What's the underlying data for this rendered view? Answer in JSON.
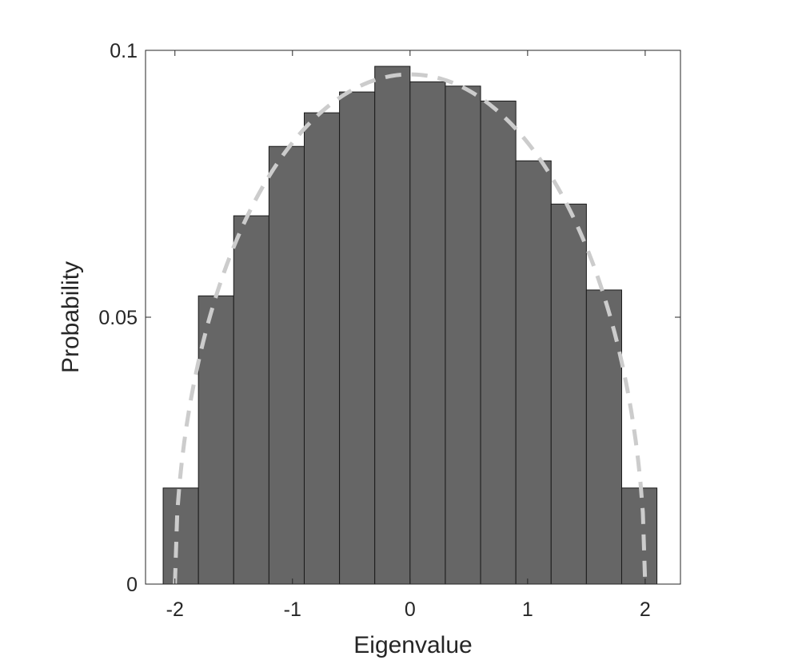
{
  "chart_data": {
    "type": "bar",
    "title": "",
    "xlabel": "Eigenvalue",
    "ylabel": "Probability",
    "xlim": [
      -2.25,
      2.3
    ],
    "ylim": [
      0,
      0.1
    ],
    "xticks": [
      -2,
      -1,
      0,
      1,
      2
    ],
    "xtick_labels": [
      "-2",
      "-1",
      "0",
      "1",
      "2"
    ],
    "yticks": [
      0,
      0.05,
      0.1
    ],
    "ytick_labels": [
      "0",
      "0.05",
      "0.1"
    ],
    "bin_edges": [
      -2.1,
      -1.8,
      -1.5,
      -1.2,
      -0.9,
      -0.6,
      -0.3,
      0.0,
      0.3,
      0.6,
      0.9,
      1.2,
      1.5,
      1.8,
      2.1
    ],
    "values": [
      0.018,
      0.054,
      0.069,
      0.082,
      0.0883,
      0.0922,
      0.097,
      0.0941,
      0.0933,
      0.0905,
      0.0793,
      0.0712,
      0.0551,
      0.018
    ],
    "bar_color": "#666666",
    "bar_edge_color": "#1a1a1a",
    "overlay_curve": {
      "type": "line",
      "style": "dashed",
      "color": "#cccccc",
      "function": "semicircle",
      "radius": 2,
      "x": [
        -2.0,
        -1.9,
        -1.8,
        -1.6,
        -1.4,
        -1.2,
        -1.0,
        -0.8,
        -0.6,
        -0.4,
        -0.2,
        0.0,
        0.2,
        0.4,
        0.6,
        0.8,
        1.0,
        1.2,
        1.4,
        1.6,
        1.8,
        1.9,
        2.0
      ],
      "y": [
        0.0,
        0.0297,
        0.0415,
        0.0573,
        0.0682,
        0.0764,
        0.0827,
        0.0875,
        0.091,
        0.0935,
        0.095,
        0.0955,
        0.095,
        0.0935,
        0.091,
        0.0875,
        0.0827,
        0.0764,
        0.0682,
        0.0573,
        0.0415,
        0.0297,
        0.0
      ]
    },
    "box": true,
    "grid": false,
    "legend": "none"
  }
}
